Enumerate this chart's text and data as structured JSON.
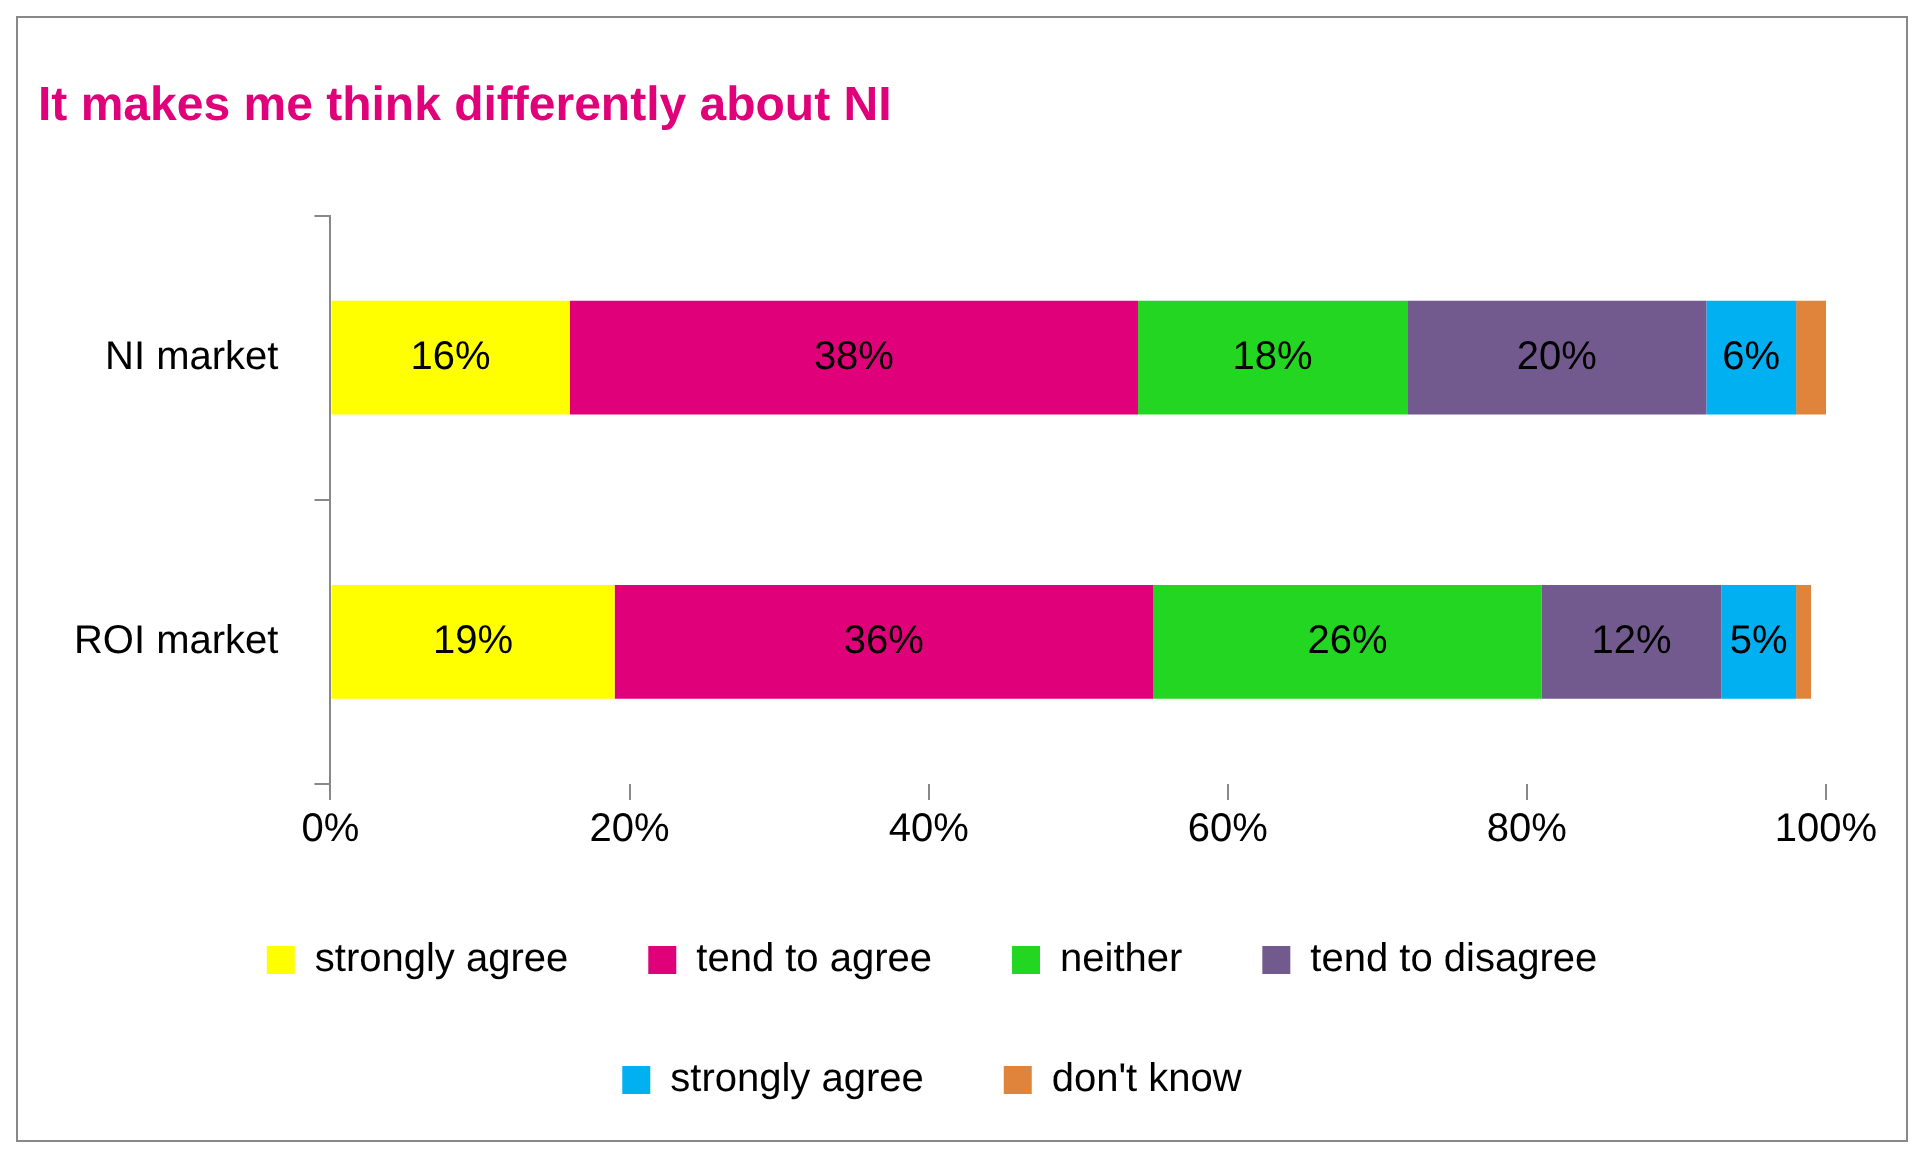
{
  "chart_data": {
    "type": "bar",
    "orientation": "horizontal",
    "stacked": true,
    "title": "It makes me think differently about NI",
    "categories": [
      "NI market",
      "ROI market"
    ],
    "series": [
      {
        "name": "strongly agree",
        "color": "#ffff00",
        "values": [
          16,
          19
        ],
        "value_labels": [
          "16%",
          "19%"
        ]
      },
      {
        "name": "tend to agree",
        "color": "#e0007a",
        "values": [
          38,
          36
        ],
        "value_labels": [
          "38%",
          "36%"
        ]
      },
      {
        "name": "neither",
        "color": "#22d622",
        "values": [
          18,
          26
        ],
        "value_labels": [
          "18%",
          "26%"
        ]
      },
      {
        "name": "tend to disagree",
        "color": "#725a8e",
        "values": [
          20,
          12
        ],
        "value_labels": [
          "20%",
          "12%"
        ]
      },
      {
        "name": "strongly agree",
        "color": "#00b0f0",
        "values": [
          6,
          5
        ],
        "value_labels": [
          "6%",
          "5%"
        ]
      },
      {
        "name": "don't know",
        "color": "#e0843c",
        "values": [
          2,
          1
        ],
        "value_labels": [
          null,
          null
        ]
      }
    ],
    "xlim": [
      0,
      100
    ],
    "xticks": [
      {
        "value": 0,
        "label": "0%"
      },
      {
        "value": 20,
        "label": "20%"
      },
      {
        "value": 40,
        "label": "40%"
      },
      {
        "value": 60,
        "label": "60%"
      },
      {
        "value": 80,
        "label": "80%"
      },
      {
        "value": 100,
        "label": "100%"
      }
    ],
    "grid": false,
    "legend": "bottom"
  }
}
